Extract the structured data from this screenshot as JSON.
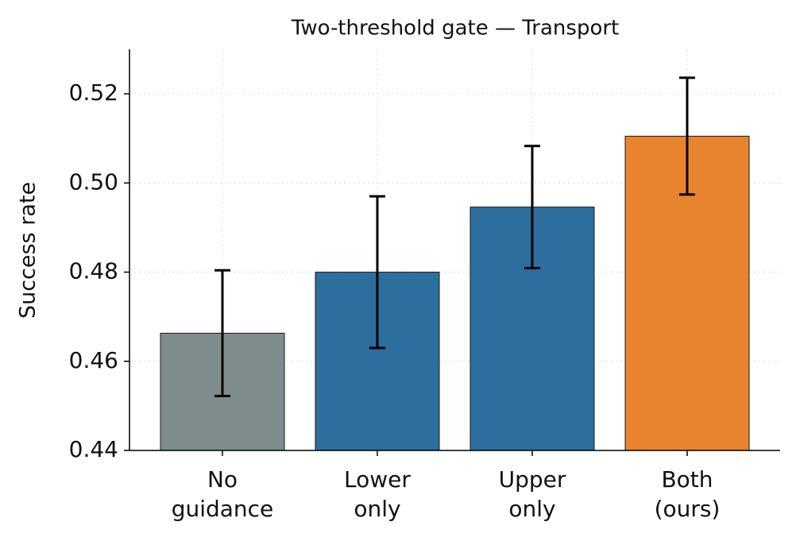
{
  "chart_data": {
    "type": "bar",
    "title": "Two-threshold gate — Transport",
    "ylabel": "Success rate",
    "categories": [
      "No\nguidance",
      "Lower\nonly",
      "Upper\nonly",
      "Both\n(ours)"
    ],
    "values": [
      0.4663,
      0.48,
      0.4946,
      0.5105
    ],
    "errors": [
      0.0141,
      0.017,
      0.0137,
      0.0131
    ],
    "colors": [
      "#7f8c8d",
      "#2c6e9e",
      "#e8832e"
    ],
    "bar_colors": [
      "#7f8c8d",
      "#2c6e9e",
      "#2c6e9e",
      "#e8832e"
    ],
    "ylim": [
      0.44,
      0.53
    ],
    "yticks": [
      0.44,
      0.46,
      0.48,
      {
        "value": 0.5,
        "label": "0.50"
      },
      0.52
    ],
    "grid": true
  }
}
